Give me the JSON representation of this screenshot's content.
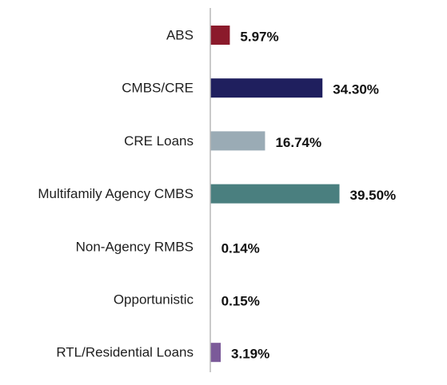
{
  "chart_data": {
    "type": "bar",
    "orientation": "horizontal",
    "categories": [
      "ABS",
      "CMBS/CRE",
      "CRE Loans",
      "Multifamily Agency CMBS",
      "Non-Agency RMBS",
      "Opportunistic",
      "RTL/Residential Loans"
    ],
    "values": [
      5.97,
      34.3,
      16.74,
      39.5,
      0.14,
      0.15,
      3.19
    ],
    "value_labels": [
      "5.97%",
      "34.30%",
      "16.74%",
      "39.50%",
      "0.14%",
      "0.15%",
      "3.19%"
    ],
    "colors": [
      "#8b1a2b",
      "#1f1f5e",
      "#9aabb5",
      "#4a7f7f",
      "#c9c9c9",
      "#c9c9c9",
      "#7b5a99"
    ],
    "axis_color": "#b8b8b8",
    "xlim": [
      0,
      45
    ],
    "grid": false,
    "legend": "none"
  }
}
